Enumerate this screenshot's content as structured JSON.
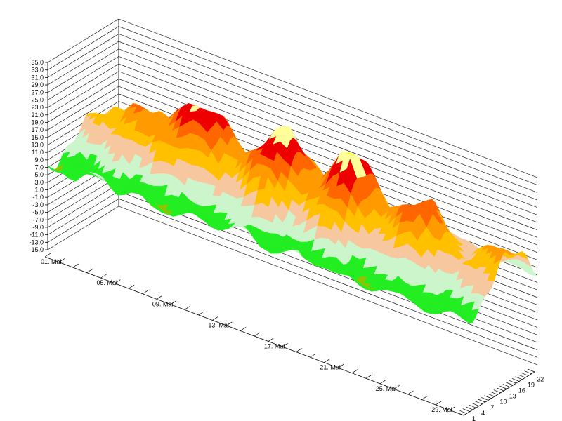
{
  "chart_data": {
    "type": "surface",
    "title": "",
    "xlabel": "",
    "ylabel": "",
    "zlabel": "",
    "x_dates": [
      "01. Mai",
      "05. Mai",
      "09. Mai",
      "13. Mai",
      "17. Mai",
      "21. Mai",
      "25. Mai",
      "29. Mai"
    ],
    "x_range_days": [
      1,
      31
    ],
    "y_ticks": [
      "1",
      "4",
      "7",
      "10",
      "13",
      "16",
      "19",
      "22"
    ],
    "y_range_hours": [
      1,
      24
    ],
    "z_ticks": [
      "35,0",
      "33,0",
      "31,0",
      "29,0",
      "27,0",
      "25,0",
      "23,0",
      "21,0",
      "19,0",
      "17,0",
      "15,0",
      "13,0",
      "11,0",
      "9,0",
      "7,0",
      "5,0",
      "3,0",
      "1,0",
      "-1,0",
      "-3,0",
      "-5,0",
      "-7,0",
      "-9,0",
      "-11,0",
      "-13,0",
      "-15,0"
    ],
    "z_range": [
      -15,
      35
    ],
    "grid": true,
    "color_bands": [
      {
        "from": -15,
        "to": 3,
        "color": "#006400"
      },
      {
        "from": 3,
        "to": 6,
        "color": "#8ec400"
      },
      {
        "from": 6,
        "to": 9,
        "color": "#22ee22"
      },
      {
        "from": 9,
        "to": 12,
        "color": "#ccf5cc"
      },
      {
        "from": 12,
        "to": 15,
        "color": "#f7c8a0"
      },
      {
        "from": 15,
        "to": 18,
        "color": "#ffc000"
      },
      {
        "from": 18,
        "to": 21,
        "color": "#ff9a00"
      },
      {
        "from": 21,
        "to": 24,
        "color": "#ff6600"
      },
      {
        "from": 24,
        "to": 27,
        "color": "#ee0000"
      },
      {
        "from": 27,
        "to": 30,
        "color": "#ffff99"
      },
      {
        "from": 30,
        "to": 33,
        "color": "#ffff00"
      },
      {
        "from": 33,
        "to": 35,
        "color": "#ff88dd"
      }
    ],
    "daily_mean": [
      10,
      12,
      11,
      14,
      15,
      13,
      15,
      16,
      17,
      16,
      14,
      13,
      15,
      18,
      19,
      16,
      13,
      15,
      18,
      19,
      15,
      12,
      13,
      15,
      16,
      13,
      12,
      11,
      12,
      13,
      14
    ],
    "daily_amplitude": [
      5,
      6,
      7,
      8,
      8,
      8,
      10,
      13,
      14,
      13,
      9,
      7,
      10,
      13,
      14,
      12,
      8,
      10,
      14,
      15,
      9,
      7,
      9,
      11,
      11,
      8,
      6,
      5,
      7,
      7,
      8
    ]
  }
}
